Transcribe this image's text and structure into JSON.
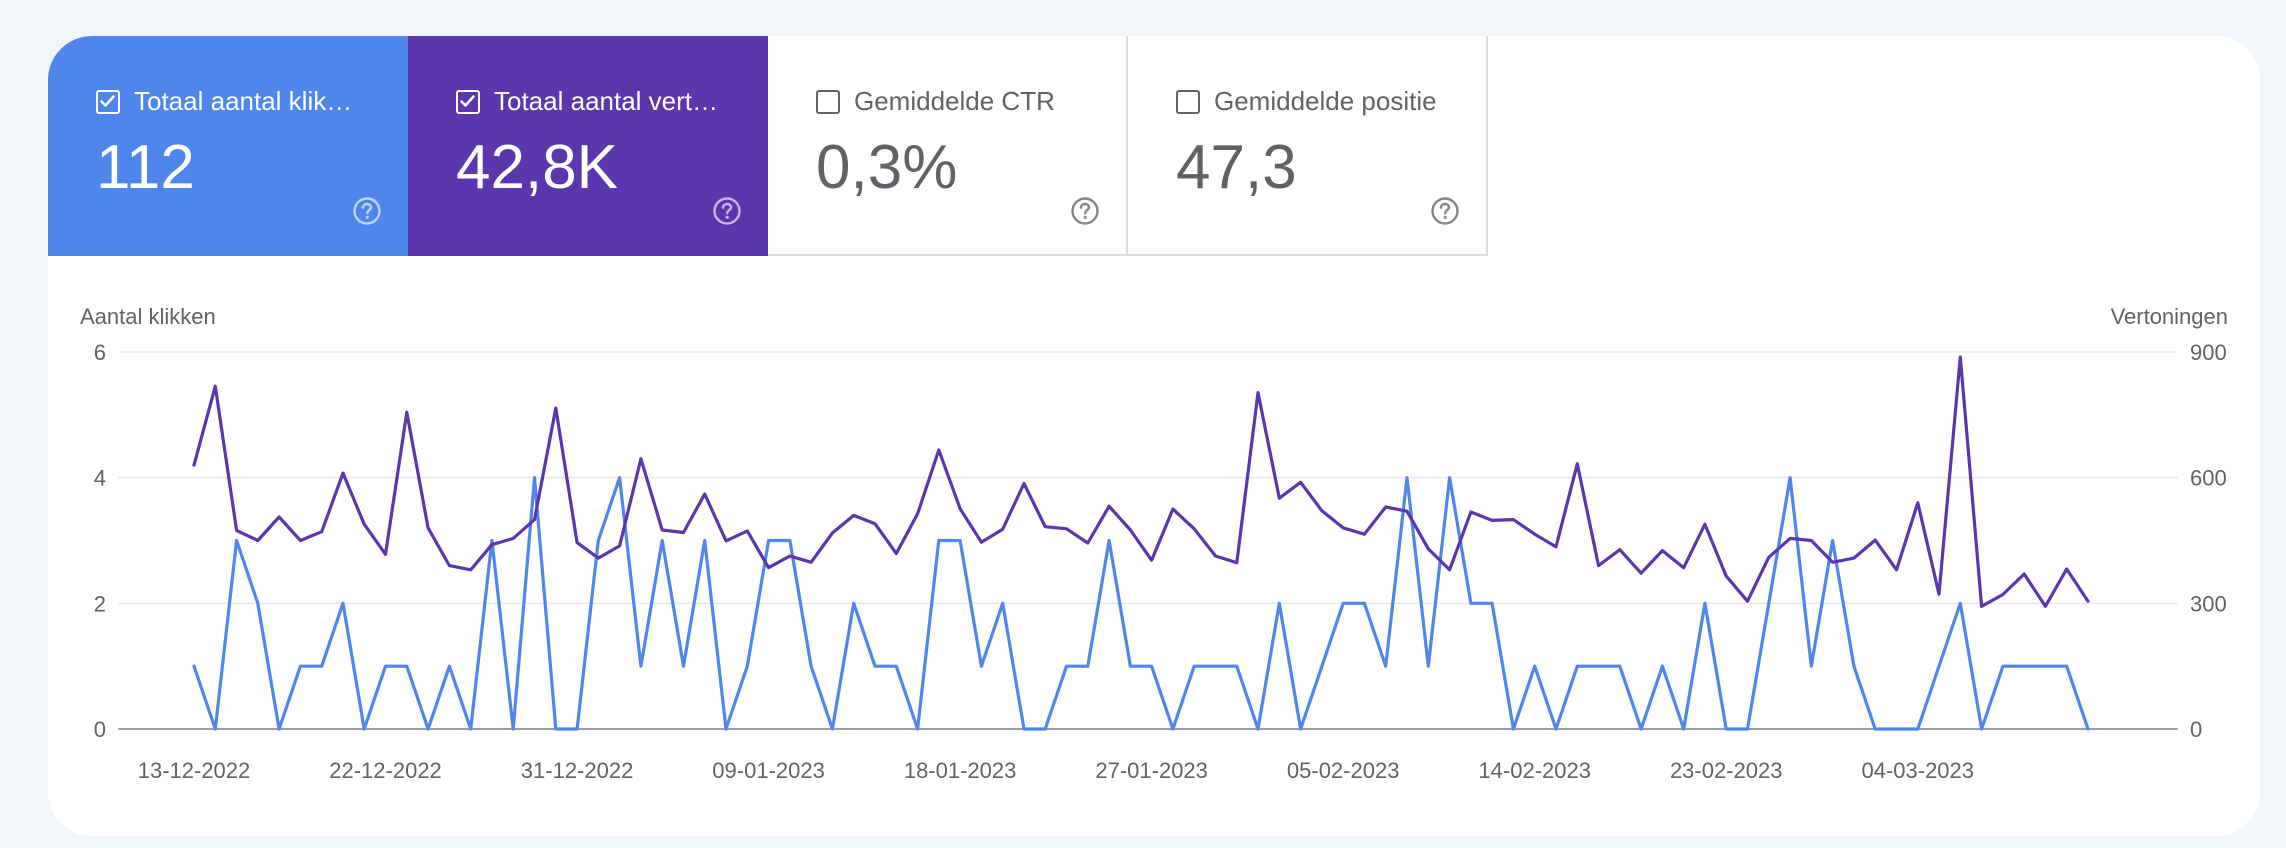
{
  "metrics": [
    {
      "label": "Totaal aantal klik…",
      "value": "112",
      "checked": true,
      "style": "blue"
    },
    {
      "label": "Totaal aantal vert…",
      "value": "42,8K",
      "checked": true,
      "style": "purple"
    },
    {
      "label": "Gemiddelde CTR",
      "value": "0,3%",
      "checked": false,
      "style": "plain"
    },
    {
      "label": "Gemiddelde positie",
      "value": "47,3",
      "checked": false,
      "style": "plain"
    }
  ],
  "colors": {
    "clicks": "#4f86ec",
    "impressions": "#5b36ad",
    "grid": "#e8eaed",
    "axis": "#9aa0a6"
  },
  "chart_data": {
    "type": "line",
    "ylabel_left": "Aantal klikken",
    "ylabel_right": "Vertoningen",
    "ylim_left": [
      0,
      6
    ],
    "ylim_right": [
      0,
      900
    ],
    "yticks_left": [
      "0",
      "2",
      "4",
      "6"
    ],
    "yticks_right": [
      "0",
      "300",
      "600",
      "900"
    ],
    "x_start": "13-12-2022",
    "x_end": "12-03-2023",
    "xticks": [
      "13-12-2022",
      "22-12-2022",
      "31-12-2022",
      "09-01-2023",
      "18-01-2023",
      "27-01-2023",
      "05-02-2023",
      "14-02-2023",
      "23-02-2023",
      "04-03-2023"
    ],
    "grid": true,
    "series": [
      {
        "name": "Totaal aantal klikken",
        "axis": "left",
        "values": [
          1,
          0,
          3,
          2,
          0,
          1,
          1,
          2,
          0,
          1,
          1,
          0,
          1,
          0,
          3,
          0,
          4,
          0,
          0,
          3,
          4,
          1,
          3,
          1,
          3,
          0,
          1,
          3,
          3,
          1,
          0,
          2,
          1,
          1,
          0,
          3,
          3,
          1,
          2,
          0,
          0,
          1,
          1,
          3,
          1,
          1,
          0,
          1,
          1,
          1,
          0,
          2,
          0,
          1,
          2,
          2,
          1,
          4,
          1,
          4,
          2,
          2,
          0,
          1,
          0,
          1,
          1,
          1,
          0,
          1,
          0,
          2,
          0,
          0,
          2,
          4,
          1,
          3,
          1,
          0,
          0,
          0,
          1,
          2,
          0,
          1,
          1,
          1,
          1,
          0
        ]
      },
      {
        "name": "Totaal aantal vertoningen",
        "axis": "right",
        "values": [
          630,
          818,
          474,
          450,
          506,
          450,
          471,
          611,
          489,
          417,
          756,
          480,
          390,
          380,
          440,
          455,
          500,
          766,
          445,
          408,
          437,
          645,
          475,
          469,
          561,
          449,
          473,
          385,
          413,
          398,
          468,
          510,
          490,
          419,
          514,
          666,
          526,
          446,
          477,
          586,
          483,
          478,
          444,
          532,
          475,
          403,
          525,
          478,
          413,
          397,
          803,
          551,
          589,
          521,
          480,
          465,
          530,
          520,
          430,
          380,
          518,
          498,
          500,
          465,
          435,
          633,
          390,
          428,
          372,
          426,
          385,
          489,
          365,
          305,
          410,
          455,
          450,
          398,
          408,
          451,
          380,
          540,
          322,
          888,
          293,
          321,
          370,
          293,
          382,
          305
        ]
      }
    ]
  }
}
